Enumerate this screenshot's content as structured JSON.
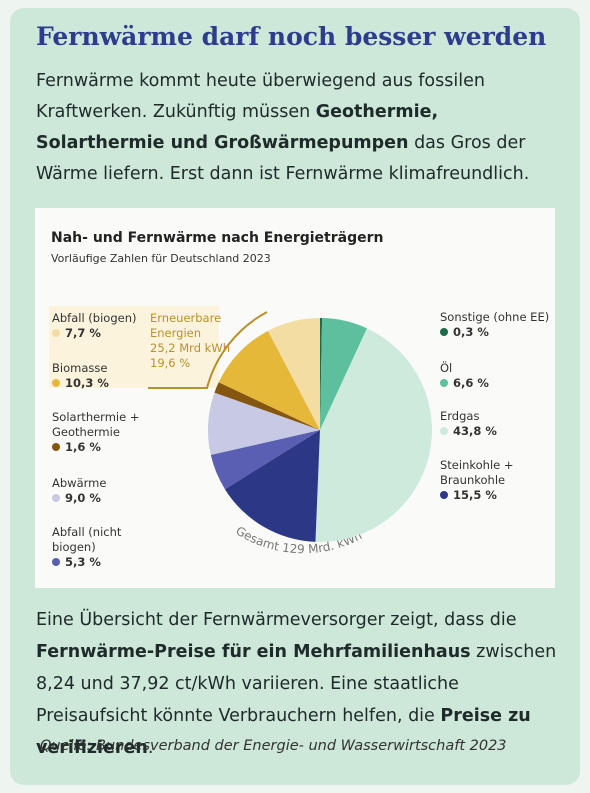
{
  "headline": "Fernwärme darf noch besser werden",
  "intro": [
    {
      "text": "Fernwärme kommt heute überwiegend aus fossilen Kraftwerken. Zukünftig müssen ",
      "bold": false
    },
    {
      "text": "Geothermie, Solarthermie und Großwärmepumpen",
      "bold": true
    },
    {
      "text": " das Gros der Wärme liefern. Erst dann ist Fernwärme klimafreundlich.",
      "bold": false
    }
  ],
  "chart_data": {
    "type": "pie",
    "title": "Nah- und Fernwärme nach Energieträgern",
    "subtitle": "Vorläufige Zahlen für Deutschland 2023",
    "categories": [
      "Sonstige (ohne EE)",
      "Öl",
      "Erdgas",
      "Steinkohle + Braunkohle",
      "Abfall (nicht biogen)",
      "Abwärme",
      "Solarthermie + Geothermie",
      "Biomasse",
      "Abfall (biogen)"
    ],
    "values": [
      0.3,
      6.6,
      43.8,
      15.5,
      5.3,
      9.0,
      1.6,
      10.3,
      7.7
    ],
    "value_labels": [
      "0,3 %",
      "6,6 %",
      "43,8 %",
      "15,5 %",
      "5,3 %",
      "9,0 %",
      "1,6 %",
      "10,3 %",
      "7,7 %"
    ],
    "colors": [
      "#1d6a4a",
      "#5dbf9e",
      "#cdeadd",
      "#2c3786",
      "#5a5fb3",
      "#c8c9e4",
      "#85560f",
      "#e6b83a",
      "#f3dda3"
    ],
    "annotation": [
      "Erneuerbare",
      "Energien",
      "25,2 Mrd kWh",
      "19,6 %"
    ],
    "total_label": "Gesamt 129 Mrd. kWh"
  },
  "outro": [
    {
      "text": "Eine Übersicht der Fernwärmeversorger zeigt, dass die ",
      "bold": false
    },
    {
      "text": "Fernwärme-Preise für ein Mehrfamilienhaus",
      "bold": true
    },
    {
      "text": " zwischen 8,24 und 37,92 ct/kWh variieren. Eine staatliche Preisaufsicht könnte Verbrauchern helfen, die ",
      "bold": false
    },
    {
      "text": "Preise zu verifizieren",
      "bold": true
    },
    {
      "text": ".",
      "bold": false
    }
  ],
  "source": "Quelle: Bundesverband der Energie- und Wasserwirtschaft 2023"
}
